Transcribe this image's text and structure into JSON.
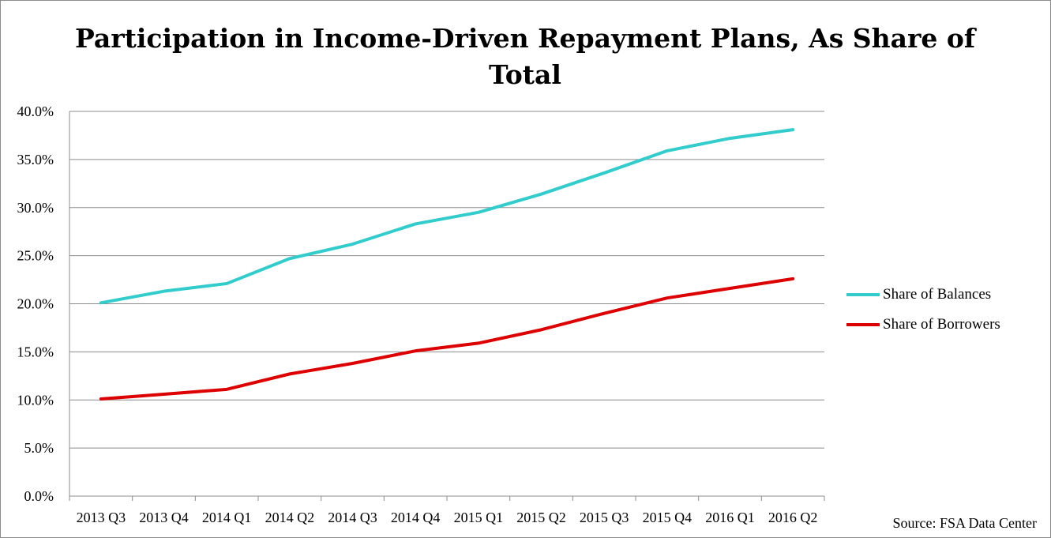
{
  "chart_data": {
    "type": "line",
    "title": "Participation in Income-Driven Repayment Plans, As Share of Total",
    "categories": [
      "2013 Q3",
      "2013 Q4",
      "2014 Q1",
      "2014 Q2",
      "2014 Q3",
      "2014 Q4",
      "2015 Q1",
      "2015 Q2",
      "2015 Q3",
      "2015 Q4",
      "2016 Q1",
      "2016 Q2"
    ],
    "series": [
      {
        "name": "Share of Balances",
        "color": "#33cccc",
        "values": [
          20.1,
          21.3,
          22.1,
          24.7,
          26.2,
          28.3,
          29.5,
          31.4,
          33.6,
          35.9,
          37.2,
          38.1
        ]
      },
      {
        "name": "Share of Borrowers",
        "color": "#dd0000",
        "values": [
          10.1,
          10.6,
          11.1,
          12.7,
          13.8,
          15.1,
          15.9,
          17.3,
          19.0,
          20.6,
          21.6,
          22.6
        ]
      }
    ],
    "ylim": [
      0,
      40
    ],
    "yticks": [
      "0.0%",
      "5.0%",
      "10.0%",
      "15.0%",
      "20.0%",
      "25.0%",
      "30.0%",
      "35.0%",
      "40.0%"
    ],
    "xlabel": "",
    "ylabel": "",
    "grid": true,
    "legend_position": "right"
  },
  "source": "Source: FSA Data Center"
}
